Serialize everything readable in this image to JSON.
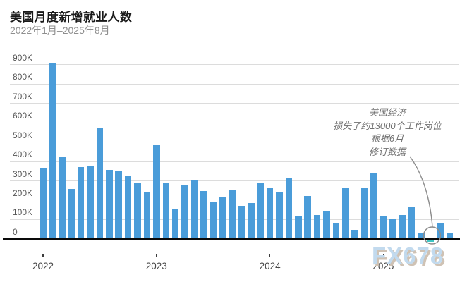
{
  "header": {
    "title": "美国月度新增就业人数",
    "subtitle": "2022年1月–2025年8月"
  },
  "watermark": "FX678",
  "chart_data": {
    "type": "bar",
    "title": "美国月度新增就业人数",
    "subtitle": "2022年1月–2025年8月",
    "value_unit": "K (thousands of jobs)",
    "grid": "horizontal",
    "legend": "none",
    "ylim": [
      -50,
      900
    ],
    "yticks": [
      "0",
      "100K",
      "200K",
      "300K",
      "400K",
      "500K",
      "600K",
      "700K",
      "800K",
      "900K"
    ],
    "ytick_values": [
      0,
      100,
      200,
      300,
      400,
      500,
      600,
      700,
      800,
      900
    ],
    "xticks": [
      "2022",
      "2023",
      "2024",
      "2025"
    ],
    "xtick_month_index": [
      0,
      12,
      24,
      36
    ],
    "x": [
      "2022-01",
      "2022-02",
      "2022-03",
      "2022-04",
      "2022-05",
      "2022-06",
      "2022-07",
      "2022-08",
      "2022-09",
      "2022-10",
      "2022-11",
      "2022-12",
      "2023-01",
      "2023-02",
      "2023-03",
      "2023-04",
      "2023-05",
      "2023-06",
      "2023-07",
      "2023-08",
      "2023-09",
      "2023-10",
      "2023-11",
      "2023-12",
      "2024-01",
      "2024-02",
      "2024-03",
      "2024-04",
      "2024-05",
      "2024-06",
      "2024-07",
      "2024-08",
      "2024-09",
      "2024-10",
      "2024-11",
      "2024-12",
      "2025-01",
      "2025-02",
      "2025-03",
      "2025-04",
      "2025-05",
      "2025-06",
      "2025-07",
      "2025-08"
    ],
    "values": [
      365,
      905,
      420,
      255,
      370,
      375,
      570,
      355,
      350,
      325,
      290,
      240,
      485,
      290,
      150,
      280,
      305,
      245,
      190,
      215,
      250,
      170,
      185,
      290,
      260,
      240,
      310,
      115,
      220,
      120,
      145,
      80,
      260,
      45,
      265,
      340,
      115,
      105,
      120,
      160,
      25,
      -13,
      80,
      30
    ],
    "bar_color": "#4A9CD9",
    "highlight": {
      "index": 41,
      "month": "2025-06",
      "value": -13,
      "color": "#3EC6C4",
      "marker": "circle-outline"
    },
    "annotation": {
      "lines": [
        "美国经济",
        "损失了约13000个工作岗位",
        "根据6月",
        "修订数据"
      ],
      "target_month": "2025-06"
    },
    "colors": {
      "grid": "#dcdcdc",
      "axis": "#0a0a0a",
      "tick_label": "#555555",
      "annotation_text": "#6f6f6f",
      "leader_line": "#8c8c8c",
      "watermark_fill": "#c2daee",
      "watermark_shadow": "#cfc2b4"
    }
  }
}
